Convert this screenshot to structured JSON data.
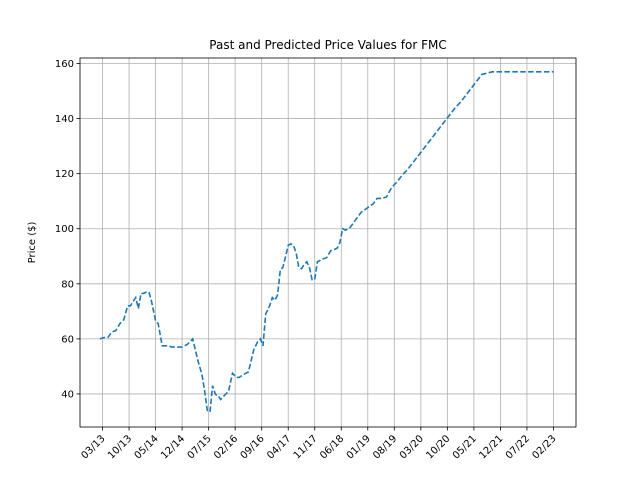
{
  "chart_data": {
    "type": "line",
    "title": "Past and Predicted Price Values for FMC",
    "xlabel": "",
    "ylabel": "Price ($)",
    "ylim": [
      28,
      162
    ],
    "yticks": [
      40,
      60,
      80,
      100,
      120,
      140,
      160
    ],
    "grid": true,
    "xticks": [
      "03/13",
      "10/13",
      "05/14",
      "12/14",
      "07/15",
      "02/16",
      "09/16",
      "04/17",
      "11/17",
      "06/18",
      "01/19",
      "08/19",
      "03/20",
      "10/20",
      "05/21",
      "12/21",
      "07/22",
      "02/23"
    ],
    "series": [
      {
        "color": "#1f77b4",
        "line_style": "dashed",
        "x": [
          -0.1,
          0.05,
          0.2,
          0.35,
          0.5,
          0.65,
          0.8,
          0.95,
          1.05,
          1.15,
          1.25,
          1.35,
          1.45,
          1.55,
          1.65,
          1.75,
          1.85,
          2.0,
          2.1,
          2.25,
          2.4,
          2.5,
          2.6,
          2.7,
          2.85,
          3.0,
          3.2,
          3.4,
          3.6,
          3.75,
          3.85,
          3.95,
          4.05,
          4.15,
          4.25,
          4.3,
          4.35,
          4.45,
          4.55,
          4.65,
          4.75,
          4.9,
          5.05,
          5.15,
          5.3,
          5.5,
          5.7,
          5.85,
          5.95,
          6.05,
          6.15,
          6.3,
          6.4,
          6.5,
          6.6,
          6.7,
          6.8,
          6.9,
          7.0,
          7.1,
          7.2,
          7.3,
          7.4,
          7.5,
          7.6,
          7.7,
          7.8,
          7.9,
          8.0,
          8.1,
          8.2,
          8.3,
          8.45,
          8.6,
          8.75,
          8.85,
          8.95,
          9.05,
          9.15,
          9.3,
          9.45,
          9.6,
          9.75,
          9.9,
          10.05,
          10.2,
          10.35,
          10.5,
          10.7,
          10.9,
          11.1,
          11.3,
          11.5,
          11.7,
          11.9,
          12.1,
          12.3,
          12.5,
          12.7,
          12.9,
          13.1,
          13.3,
          13.5,
          13.7,
          13.9,
          14.1,
          14.3,
          14.5,
          14.7,
          14.9,
          15.1,
          15.3,
          15.5,
          15.7,
          15.9,
          16.1,
          16.3,
          16.5,
          16.7,
          16.9,
          17.0
        ],
        "y": [
          60,
          60.5,
          60.5,
          62.5,
          63,
          65.5,
          67,
          72,
          72,
          73.5,
          75,
          71,
          76.5,
          76.5,
          77,
          77,
          73.5,
          66.5,
          65.5,
          57.5,
          57.5,
          57.5,
          57,
          57,
          57,
          57,
          58,
          60,
          52,
          47,
          41,
          34,
          33.5,
          43,
          40,
          39.5,
          39.5,
          38,
          39,
          40,
          41,
          47.5,
          46,
          46,
          47,
          48,
          56,
          59,
          60,
          57.5,
          69,
          72,
          75,
          74,
          76,
          85,
          86,
          90,
          94,
          94.5,
          94,
          91,
          86,
          85.5,
          87,
          88,
          86,
          81.5,
          81.5,
          88,
          88.5,
          89,
          89.5,
          92,
          92.5,
          93,
          95,
          100,
          99.5,
          100,
          102,
          104,
          106,
          107,
          108,
          109,
          111,
          111,
          111.5,
          115,
          117,
          119.5,
          121.5,
          124,
          126.5,
          129,
          131.5,
          134,
          136.5,
          139,
          141.5,
          144,
          146,
          148.5,
          151,
          153.5,
          156,
          156.5,
          157,
          157.5,
          158,
          158.5,
          159,
          159.5,
          160,
          160.5,
          161,
          161.5,
          162,
          162.5,
          163
        ]
      }
    ]
  }
}
